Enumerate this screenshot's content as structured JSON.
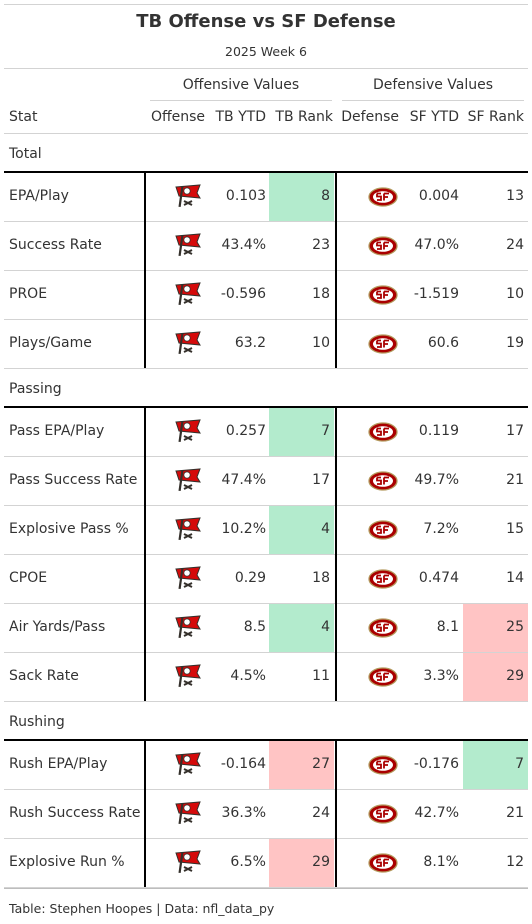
{
  "chart_data": {
    "type": "table",
    "title": "TB Offense vs SF Defense",
    "subtitle": "2025 Week 6",
    "spanners": [
      "Offensive Values",
      "Defensive Values"
    ],
    "columns": [
      "Stat",
      "Offense",
      "TB YTD",
      "TB Rank",
      "Defense",
      "SF YTD",
      "SF Rank"
    ],
    "offense_logo": "buccaneers-flag-logo",
    "defense_logo": "49ers-sf-oval-logo",
    "groups": [
      {
        "name": "Total",
        "rows": [
          {
            "stat": "EPA/Play",
            "tb_ytd": "0.103",
            "tb_rank": 8,
            "sf_ytd": "0.004",
            "sf_rank": 13
          },
          {
            "stat": "Success Rate",
            "tb_ytd": "43.4%",
            "tb_rank": 23,
            "sf_ytd": "47.0%",
            "sf_rank": 24
          },
          {
            "stat": "PROE",
            "tb_ytd": "-0.596",
            "tb_rank": 18,
            "sf_ytd": "-1.519",
            "sf_rank": 10
          },
          {
            "stat": "Plays/Game",
            "tb_ytd": "63.2",
            "tb_rank": 10,
            "sf_ytd": "60.6",
            "sf_rank": 19
          }
        ]
      },
      {
        "name": "Passing",
        "rows": [
          {
            "stat": "Pass EPA/Play",
            "tb_ytd": "0.257",
            "tb_rank": 7,
            "sf_ytd": "0.119",
            "sf_rank": 17
          },
          {
            "stat": "Pass Success Rate",
            "tb_ytd": "47.4%",
            "tb_rank": 17,
            "sf_ytd": "49.7%",
            "sf_rank": 21
          },
          {
            "stat": "Explosive Pass %",
            "tb_ytd": "10.2%",
            "tb_rank": 4,
            "sf_ytd": "7.2%",
            "sf_rank": 15
          },
          {
            "stat": "CPOE",
            "tb_ytd": "0.29",
            "tb_rank": 18,
            "sf_ytd": "0.474",
            "sf_rank": 14
          },
          {
            "stat": "Air Yards/Pass",
            "tb_ytd": "8.5",
            "tb_rank": 4,
            "sf_ytd": "8.1",
            "sf_rank": 25
          },
          {
            "stat": "Sack Rate",
            "tb_ytd": "4.5%",
            "tb_rank": 11,
            "sf_ytd": "3.3%",
            "sf_rank": 29
          }
        ]
      },
      {
        "name": "Rushing",
        "rows": [
          {
            "stat": "Rush EPA/Play",
            "tb_ytd": "-0.164",
            "tb_rank": 27,
            "sf_ytd": "-0.176",
            "sf_rank": 7
          },
          {
            "stat": "Rush Success Rate",
            "tb_ytd": "36.3%",
            "tb_rank": 24,
            "sf_ytd": "42.7%",
            "sf_rank": 21
          },
          {
            "stat": "Explosive Run %",
            "tb_ytd": "6.5%",
            "tb_rank": 29,
            "sf_ytd": "8.1%",
            "sf_rank": 12
          }
        ]
      }
    ],
    "highlight_colors": {
      "good": "#b3ebcd",
      "bad": "#ffc4c4"
    },
    "source": "Table: Stephen Hoopes | Data: nfl_data_py"
  }
}
